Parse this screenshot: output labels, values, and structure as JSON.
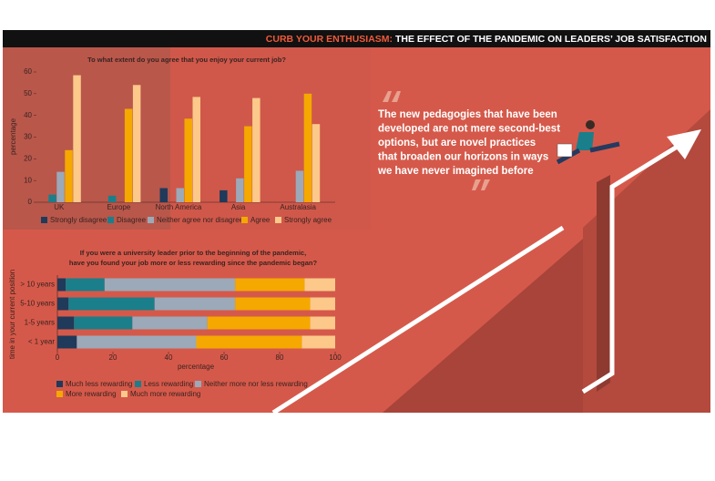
{
  "header": {
    "kicker": "CURB YOUR ENTHUSIASM:",
    "title": "THE EFFECT OF THE PANDEMIC ON LEADERS’ JOB SATISFACTION"
  },
  "quote": {
    "lines": [
      "The new pedagogies that have been",
      "developed are not mere second-best",
      "options, but are novel practices",
      "that broaden our horizons in ways",
      "we have never imagined before"
    ]
  },
  "chart_data": [
    {
      "type": "bar",
      "title": "To what extent do you agree that you enjoy your current job?",
      "y_label": "percentage",
      "categories": [
        "UK",
        "Europe",
        "North America",
        "Asia",
        "Australasia"
      ],
      "series": [
        {
          "name": "Strongly disagree",
          "color": "#1f3a5a",
          "values": [
            0,
            0,
            6.5,
            5.5,
            0
          ]
        },
        {
          "name": "Disagree",
          "color": "#1a7f8a",
          "values": [
            3.5,
            3,
            0,
            0,
            0
          ]
        },
        {
          "name": "Neither agree nor disagree",
          "color": "#9ba9b8",
          "values": [
            14,
            0,
            6.5,
            11,
            14.5
          ]
        },
        {
          "name": "Agree",
          "color": "#f5a800",
          "values": [
            24,
            43,
            38.5,
            35,
            50
          ]
        },
        {
          "name": "Strongly agree",
          "color": "#fcc98a",
          "values": [
            58.5,
            54,
            48.5,
            48,
            36
          ]
        }
      ],
      "ylim": [
        0,
        60
      ],
      "yticks": [
        0,
        10,
        20,
        30,
        40,
        50,
        60
      ]
    },
    {
      "type": "stacked_hbar",
      "title": "If you were a university leader prior to the beginning of the pandemic, have you found your job more or less rewarding since the pandemic began?",
      "x_label": "percentage",
      "y_label": "time in your current position",
      "categories": [
        "> 10 years",
        "5-10 years",
        "1-5 years",
        "< 1 year"
      ],
      "series": [
        {
          "name": "Much less rewarding",
          "color": "#1f3a5a",
          "values": [
            3,
            4,
            6,
            7
          ]
        },
        {
          "name": "Less rewarding",
          "color": "#1a7f8a",
          "values": [
            14,
            31,
            21,
            0
          ]
        },
        {
          "name": "Neither more nor less rewarding",
          "color": "#9ba9b8",
          "values": [
            47,
            29,
            27,
            43
          ]
        },
        {
          "name": "More rewarding",
          "color": "#f5a800",
          "values": [
            25,
            27,
            37,
            38
          ]
        },
        {
          "name": "Much more rewarding",
          "color": "#fcc98a",
          "values": [
            11,
            9,
            9,
            12
          ]
        }
      ],
      "xlim": [
        0,
        100
      ],
      "xticks": [
        0,
        20,
        40,
        60,
        80,
        100
      ]
    }
  ]
}
